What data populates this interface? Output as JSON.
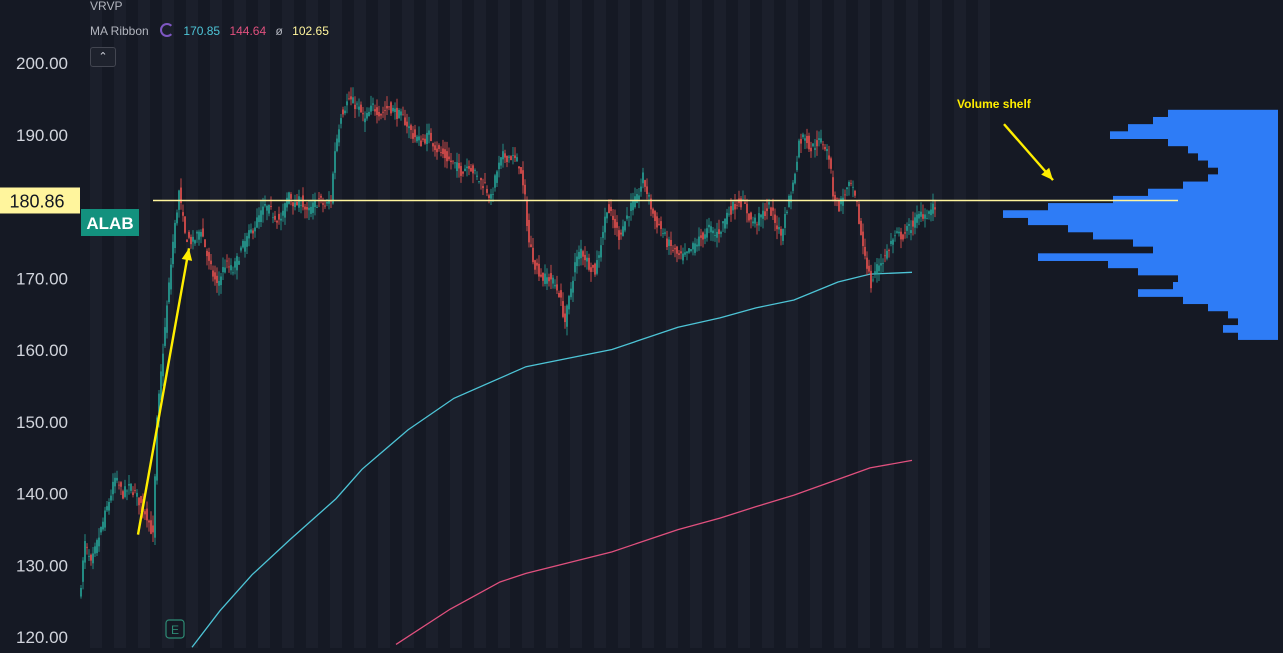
{
  "legend": {
    "indicator1": "VRVP",
    "indicator2": "MA Ribbon",
    "ma_values": [
      "170.85",
      "144.64",
      "ø",
      "102.65"
    ],
    "collapse_icon": "chevron-up-icon"
  },
  "price_label": "180.86",
  "symbol_label": "ALAB",
  "annotation": "Volume shelf",
  "earnings_marker": "E",
  "colors": {
    "background": "#151924",
    "band": "#1b1f2b",
    "up": "#26a69a",
    "down": "#ef5350",
    "ma_fast": "#4dc4d6",
    "ma_slow": "#e0507e",
    "level": "#fff59d",
    "arrow": "#ffee00",
    "volume_profile": "#2e7cf6",
    "axis_text": "#d1d4dc",
    "symbol_bg": "#13917e"
  },
  "chart_data": {
    "type": "candlestick",
    "y_ticks": [
      "200.00",
      "190.00",
      "180.00",
      "170.00",
      "160.00",
      "150.00",
      "140.00",
      "130.00",
      "120.00"
    ],
    "ylim": [
      118.5,
      208.8
    ],
    "horizontal_level": 180.86,
    "price_path": [
      [
        0,
        125
      ],
      [
        6,
        133
      ],
      [
        12,
        130
      ],
      [
        20,
        134
      ],
      [
        28,
        138
      ],
      [
        36,
        142
      ],
      [
        44,
        140
      ],
      [
        52,
        141
      ],
      [
        60,
        139
      ],
      [
        68,
        137
      ],
      [
        74,
        134
      ],
      [
        78,
        150
      ],
      [
        84,
        160
      ],
      [
        88,
        166
      ],
      [
        94,
        175
      ],
      [
        100,
        182
      ],
      [
        106,
        176
      ],
      [
        114,
        175
      ],
      [
        122,
        177
      ],
      [
        130,
        172
      ],
      [
        138,
        169
      ],
      [
        146,
        172
      ],
      [
        154,
        171
      ],
      [
        162,
        174
      ],
      [
        170,
        176
      ],
      [
        178,
        178
      ],
      [
        186,
        180
      ],
      [
        194,
        179
      ],
      [
        202,
        178
      ],
      [
        210,
        182
      ],
      [
        216,
        180
      ],
      [
        222,
        181
      ],
      [
        228,
        179
      ],
      [
        234,
        180
      ],
      [
        240,
        181
      ],
      [
        246,
        180
      ],
      [
        252,
        181
      ],
      [
        256,
        188
      ],
      [
        262,
        193
      ],
      [
        270,
        195
      ],
      [
        278,
        194
      ],
      [
        286,
        192
      ],
      [
        294,
        194
      ],
      [
        302,
        193
      ],
      [
        310,
        194
      ],
      [
        318,
        193
      ],
      [
        326,
        192
      ],
      [
        334,
        190
      ],
      [
        342,
        189
      ],
      [
        350,
        190
      ],
      [
        358,
        188
      ],
      [
        366,
        187
      ],
      [
        374,
        186
      ],
      [
        382,
        185
      ],
      [
        390,
        186
      ],
      [
        398,
        184
      ],
      [
        406,
        183
      ],
      [
        412,
        181
      ],
      [
        418,
        185
      ],
      [
        424,
        187
      ],
      [
        432,
        187
      ],
      [
        440,
        186
      ],
      [
        446,
        181
      ],
      [
        450,
        175
      ],
      [
        456,
        172
      ],
      [
        464,
        170
      ],
      [
        472,
        170
      ],
      [
        480,
        168
      ],
      [
        486,
        164
      ],
      [
        490,
        167
      ],
      [
        496,
        172
      ],
      [
        502,
        174
      ],
      [
        510,
        172
      ],
      [
        516,
        171
      ],
      [
        522,
        175
      ],
      [
        528,
        180
      ],
      [
        534,
        178
      ],
      [
        540,
        176
      ],
      [
        546,
        178
      ],
      [
        552,
        180
      ],
      [
        558,
        181
      ],
      [
        564,
        184
      ],
      [
        570,
        181
      ],
      [
        576,
        178
      ],
      [
        582,
        177
      ],
      [
        588,
        175
      ],
      [
        594,
        174
      ],
      [
        600,
        173
      ],
      [
        606,
        173
      ],
      [
        612,
        174
      ],
      [
        618,
        175
      ],
      [
        624,
        176
      ],
      [
        630,
        177
      ],
      [
        636,
        176
      ],
      [
        642,
        177
      ],
      [
        648,
        179
      ],
      [
        654,
        180
      ],
      [
        660,
        181
      ],
      [
        666,
        180
      ],
      [
        672,
        178
      ],
      [
        678,
        178
      ],
      [
        684,
        179
      ],
      [
        690,
        180
      ],
      [
        696,
        178
      ],
      [
        702,
        176
      ],
      [
        708,
        180
      ],
      [
        714,
        183
      ],
      [
        720,
        189
      ],
      [
        726,
        190
      ],
      [
        732,
        188
      ],
      [
        738,
        189
      ],
      [
        744,
        189
      ],
      [
        750,
        187
      ],
      [
        754,
        182
      ],
      [
        760,
        180
      ],
      [
        766,
        182
      ],
      [
        772,
        183
      ],
      [
        778,
        180
      ],
      [
        782,
        176
      ],
      [
        788,
        172
      ],
      [
        792,
        169
      ],
      [
        796,
        171
      ],
      [
        800,
        172
      ],
      [
        806,
        173
      ],
      [
        812,
        175
      ],
      [
        818,
        176
      ],
      [
        824,
        176
      ],
      [
        830,
        177
      ],
      [
        836,
        178
      ],
      [
        842,
        179
      ],
      [
        848,
        179
      ],
      [
        855,
        180
      ]
    ],
    "ma_fast_path": [
      [
        112,
        118.6
      ],
      [
        140,
        123.7
      ],
      [
        172,
        128.7
      ],
      [
        210,
        133.6
      ],
      [
        256,
        139.3
      ],
      [
        282,
        143.4
      ],
      [
        328,
        148.9
      ],
      [
        374,
        153.3
      ],
      [
        446,
        157.7
      ],
      [
        532,
        160.1
      ],
      [
        598,
        163.2
      ],
      [
        640,
        164.5
      ],
      [
        676,
        165.9
      ],
      [
        714,
        167.0
      ],
      [
        758,
        169.5
      ],
      [
        790,
        170.6
      ],
      [
        832,
        170.85
      ]
    ],
    "ma_slow_path": [
      [
        316,
        119.0
      ],
      [
        370,
        123.9
      ],
      [
        420,
        127.7
      ],
      [
        446,
        128.9
      ],
      [
        532,
        131.9
      ],
      [
        598,
        135.0
      ],
      [
        640,
        136.6
      ],
      [
        676,
        138.2
      ],
      [
        714,
        139.8
      ],
      [
        758,
        142.0
      ],
      [
        790,
        143.6
      ],
      [
        832,
        144.64
      ]
    ],
    "volume_profile": [
      [
        193,
        110
      ],
      [
        192,
        125
      ],
      [
        191,
        150
      ],
      [
        190,
        168
      ],
      [
        189,
        110
      ],
      [
        188,
        90
      ],
      [
        187,
        80
      ],
      [
        186,
        70
      ],
      [
        185,
        60
      ],
      [
        184,
        70
      ],
      [
        183,
        95
      ],
      [
        182,
        130
      ],
      [
        181,
        165
      ],
      [
        180,
        230
      ],
      [
        179,
        275
      ],
      [
        178,
        250
      ],
      [
        177,
        210
      ],
      [
        176,
        185
      ],
      [
        175,
        145
      ],
      [
        174,
        125
      ],
      [
        173,
        240
      ],
      [
        172,
        170
      ],
      [
        171,
        140
      ],
      [
        170,
        100
      ],
      [
        169,
        105
      ],
      [
        168,
        140
      ],
      [
        167,
        95
      ],
      [
        166,
        70
      ],
      [
        165,
        50
      ],
      [
        164,
        40
      ],
      [
        163,
        55
      ],
      [
        162,
        40
      ]
    ],
    "annotation_arrows": [
      {
        "from": [
          138,
          134.3
        ],
        "to": [
          189,
          174.2
        ]
      },
      {
        "from": [
          1004,
          191.5
        ],
        "to": [
          1053,
          183.7
        ]
      }
    ]
  }
}
